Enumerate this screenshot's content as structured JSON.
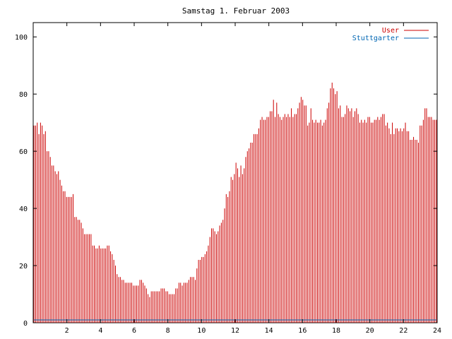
{
  "chart_data": {
    "type": "bar",
    "title": "Samstag 1. Februar 2003",
    "xlabel": "",
    "ylabel": "",
    "xlim": [
      0,
      24
    ],
    "ylim": [
      0,
      105
    ],
    "x_ticks": [
      2,
      4,
      6,
      8,
      10,
      12,
      14,
      16,
      18,
      20,
      22,
      24
    ],
    "y_ticks": [
      0,
      20,
      40,
      60,
      80,
      100
    ],
    "grid": false,
    "legend_position": "top-right",
    "series": [
      {
        "name": "User",
        "color": "#cc0000",
        "values": [
          69,
          69,
          70,
          66,
          70,
          69,
          66,
          67,
          60,
          60,
          58,
          55,
          55,
          53,
          52,
          53,
          50,
          48,
          46,
          46,
          44,
          44,
          44,
          44,
          45,
          37,
          37,
          36,
          36,
          35,
          33,
          31,
          31,
          31,
          31,
          31,
          27,
          27,
          26,
          26,
          27,
          26,
          26,
          26,
          26,
          27,
          27,
          25,
          24,
          22,
          20,
          17,
          16,
          16,
          15,
          15,
          14,
          14,
          14,
          14,
          14,
          13,
          13,
          13,
          13,
          15,
          15,
          14,
          13,
          12,
          10,
          9,
          11,
          11,
          11,
          11,
          11,
          11,
          12,
          12,
          12,
          11,
          11,
          10,
          10,
          10,
          10,
          12,
          12,
          14,
          14,
          13,
          14,
          14,
          14,
          15,
          16,
          16,
          16,
          15,
          19,
          22,
          22,
          23,
          23,
          24,
          25,
          27,
          30,
          33,
          33,
          32,
          31,
          32,
          34,
          35,
          36,
          40,
          45,
          44,
          46,
          51,
          50,
          52,
          56,
          54,
          51,
          55,
          52,
          54,
          58,
          60,
          61,
          63,
          63,
          66,
          66,
          66,
          68,
          71,
          72,
          71,
          71,
          72,
          72,
          74,
          74,
          78,
          72,
          77,
          73,
          72,
          71,
          72,
          73,
          72,
          73,
          72,
          75,
          72,
          73,
          73,
          75,
          77,
          79,
          78,
          76,
          76,
          69,
          70,
          75,
          71,
          70,
          71,
          70,
          70,
          71,
          69,
          70,
          71,
          75,
          77,
          82,
          84,
          82,
          80,
          81,
          75,
          76,
          72,
          72,
          73,
          76,
          75,
          74,
          75,
          72,
          74,
          75,
          73,
          70,
          71,
          70,
          71,
          70,
          72,
          72,
          70,
          70,
          71,
          71,
          72,
          71,
          72,
          73,
          73,
          69,
          70,
          68,
          66,
          70,
          66,
          68,
          68,
          67,
          68,
          67,
          68,
          70,
          67,
          67,
          64,
          64,
          65,
          64,
          64,
          63,
          69,
          69,
          71,
          75,
          75,
          72,
          72,
          72,
          71,
          71,
          71
        ]
      },
      {
        "name": "Stuttgarter",
        "color": "#0066b3",
        "values": [
          1,
          1,
          1,
          1,
          1,
          1,
          1,
          1,
          1,
          1,
          1,
          1,
          1,
          1,
          1,
          1,
          1,
          1,
          1,
          1,
          1,
          1,
          1,
          1,
          1,
          1,
          1,
          1,
          1,
          1,
          1,
          1,
          1,
          1,
          1,
          1,
          1,
          1,
          1,
          1,
          1,
          1,
          1,
          1,
          1,
          1,
          1,
          1,
          1,
          1,
          1,
          1,
          1,
          1,
          1,
          1,
          1,
          1,
          1,
          1,
          1,
          1,
          1,
          1,
          1,
          1,
          1,
          1,
          1,
          1,
          1,
          1,
          1,
          1,
          1,
          1,
          1,
          1,
          1,
          1,
          1,
          1,
          1,
          1,
          1,
          1,
          1,
          1,
          1,
          1,
          1,
          1,
          1,
          1,
          1,
          1,
          1,
          1,
          1,
          1,
          1,
          1,
          1,
          1,
          1,
          1,
          1,
          1,
          1,
          1,
          1,
          1,
          1,
          1,
          1,
          1,
          1,
          1,
          1,
          1,
          1,
          1,
          1,
          1,
          1,
          1,
          1,
          1,
          1,
          1,
          1,
          1,
          1,
          1,
          1,
          1,
          1,
          1,
          1,
          1,
          1,
          1,
          1,
          1,
          1,
          1,
          1,
          1,
          1,
          1,
          1,
          1,
          1,
          1,
          1,
          1,
          1,
          1,
          1,
          1,
          1,
          1,
          1,
          1,
          1,
          1,
          1,
          1,
          1,
          1,
          1,
          1,
          1,
          1,
          1,
          1,
          1,
          1,
          1,
          1,
          1,
          1,
          1,
          1,
          1,
          1,
          1,
          1,
          1,
          1,
          1,
          1,
          1,
          1,
          1,
          1,
          1,
          1,
          1,
          1,
          1,
          1,
          1,
          1,
          1,
          1,
          1,
          1,
          1,
          1,
          1,
          1,
          1,
          1,
          1,
          1,
          1,
          1,
          1,
          1,
          1,
          1,
          1,
          1,
          1,
          1,
          1,
          1,
          1,
          1,
          1,
          1,
          1,
          1,
          1,
          1,
          1,
          1,
          1,
          1,
          1,
          1,
          1,
          1,
          1,
          1,
          1,
          1,
          1,
          1,
          1,
          1,
          1,
          1,
          1,
          1,
          1,
          1,
          1,
          1
        ]
      }
    ]
  }
}
